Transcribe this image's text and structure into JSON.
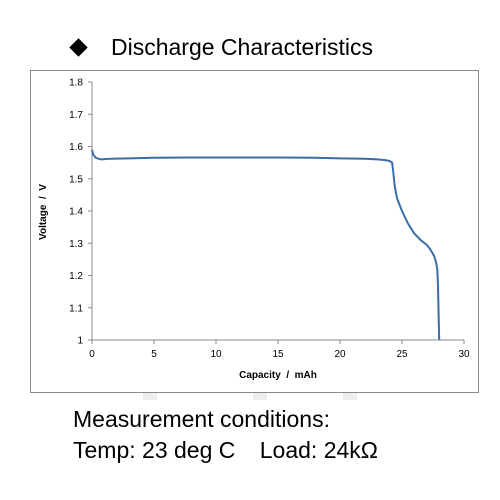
{
  "heading": {
    "bullet_icon": "diamond-bullet-icon",
    "title": "Discharge Characteristics"
  },
  "conditions": {
    "line1": "Measurement conditions:",
    "temp": "Temp: 23 deg C",
    "load": "Load: 24kΩ"
  },
  "chart_data": {
    "type": "line",
    "title": "Discharge Characteristics",
    "xlabel": "Capacity  /  mAh",
    "ylabel": "Voltage  /  V",
    "xlim": [
      0,
      30
    ],
    "ylim": [
      1.0,
      1.8
    ],
    "xticks": [
      "0",
      "5",
      "10",
      "15",
      "20",
      "25",
      "30"
    ],
    "yticks": [
      "1",
      "1.1",
      "1.2",
      "1.3",
      "1.4",
      "1.5",
      "1.6",
      "1.7",
      "1.8"
    ],
    "grid": false,
    "line_color": "#3a6ea8",
    "series": [
      {
        "x": [
          0,
          0.1,
          0.3,
          0.7,
          1.5,
          3,
          5,
          8,
          10,
          12,
          15,
          18,
          20,
          22,
          23,
          23.6,
          24,
          24.2,
          24.3,
          24.4,
          24.6,
          25,
          25.5,
          26,
          26.5,
          27,
          27.3,
          27.6,
          27.75,
          27.85,
          27.9,
          27.95,
          28.0
        ],
        "y": [
          1.59,
          1.575,
          1.565,
          1.56,
          1.562,
          1.563,
          1.565,
          1.566,
          1.566,
          1.566,
          1.566,
          1.565,
          1.563,
          1.562,
          1.56,
          1.558,
          1.555,
          1.55,
          1.52,
          1.48,
          1.44,
          1.4,
          1.36,
          1.33,
          1.31,
          1.295,
          1.28,
          1.26,
          1.24,
          1.22,
          1.17,
          1.08,
          1.0
        ]
      }
    ]
  }
}
